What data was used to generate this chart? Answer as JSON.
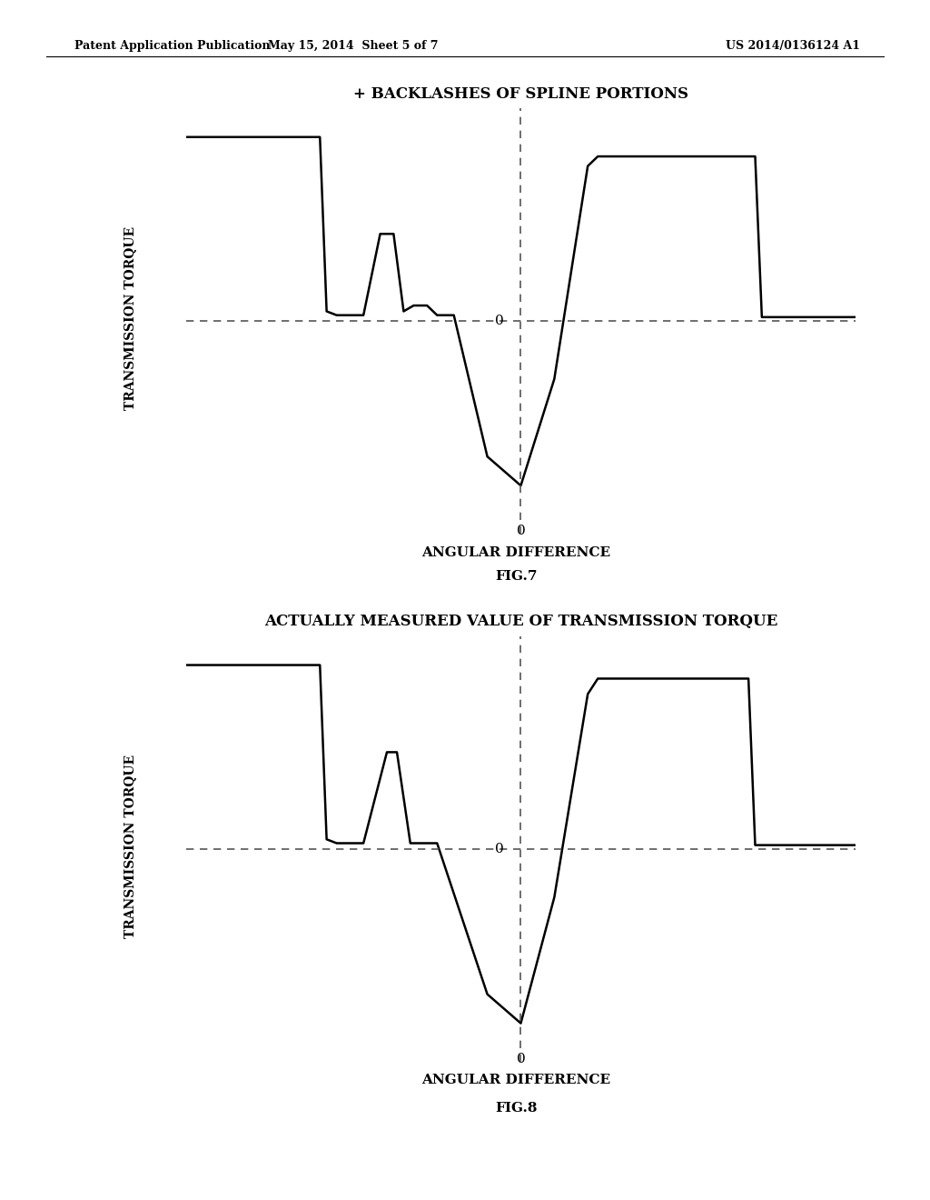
{
  "header_left": "Patent Application Publication",
  "header_mid": "May 15, 2014  Sheet 5 of 7",
  "header_right": "US 2014/0136124 A1",
  "fig7_title": "+ BACKLASHES OF SPLINE PORTIONS",
  "fig7_ylabel": "TRANSMISSION TORQUE",
  "fig7_xlabel": "ANGULAR DIFFERENCE",
  "fig7_label": "FIG.7",
  "fig8_title": "ACTUALLY MEASURED VALUE OF TRANSMISSION TORQUE",
  "fig8_ylabel": "TRANSMISSION TORQUE",
  "fig8_xlabel": "ANGULAR DIFFERENCE",
  "fig8_label": "FIG.8",
  "bg_color": "#ffffff",
  "line_color": "#000000",
  "dashed_color": "#555555"
}
